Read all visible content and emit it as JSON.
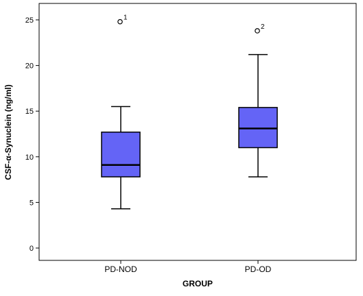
{
  "chart_data": {
    "type": "boxplot",
    "xlabel": "GROUP",
    "ylabel": "CSF-α-Synuclein (ng/ml)",
    "ylim": [
      -1,
      26
    ],
    "yticks": [
      0,
      5,
      10,
      15,
      20,
      25
    ],
    "categories": [
      "PD-NOD",
      "PD-OD"
    ],
    "boxes": [
      {
        "category": "PD-NOD",
        "whisker_low": 4.3,
        "q1": 7.8,
        "median": 9.1,
        "q3": 12.7,
        "whisker_high": 15.5,
        "outliers": [
          {
            "value": 24.8,
            "label": "1"
          }
        ]
      },
      {
        "category": "PD-OD",
        "whisker_low": 7.8,
        "q1": 11.0,
        "median": 13.1,
        "q3": 15.4,
        "whisker_high": 21.2,
        "outliers": [
          {
            "value": 23.8,
            "label": "2"
          }
        ]
      }
    ],
    "box_color": "#6464f6",
    "grid": false
  }
}
